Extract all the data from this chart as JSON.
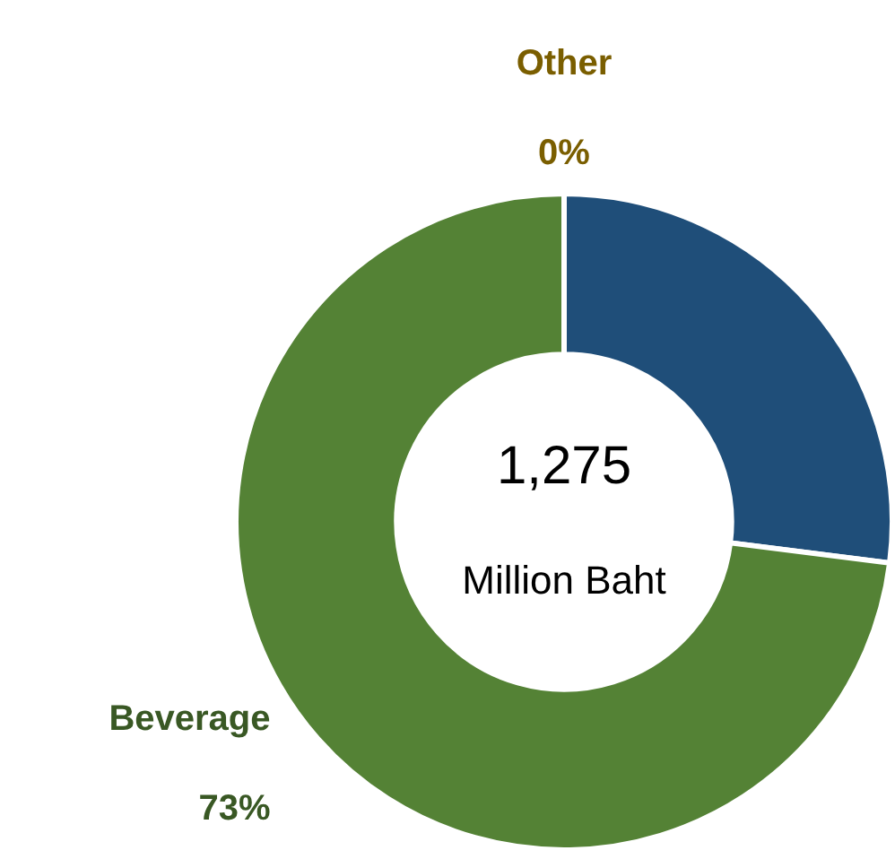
{
  "chart_data": {
    "type": "donut",
    "categories": [
      null,
      "Beverage",
      "Other"
    ],
    "values": [
      27,
      73,
      0
    ],
    "colors": [
      "#1f4e79",
      "#548235",
      "#b38a00"
    ],
    "value_labels": [
      null,
      "73%",
      "0%"
    ],
    "annotations": [
      "1,275",
      "Million Baht"
    ]
  }
}
